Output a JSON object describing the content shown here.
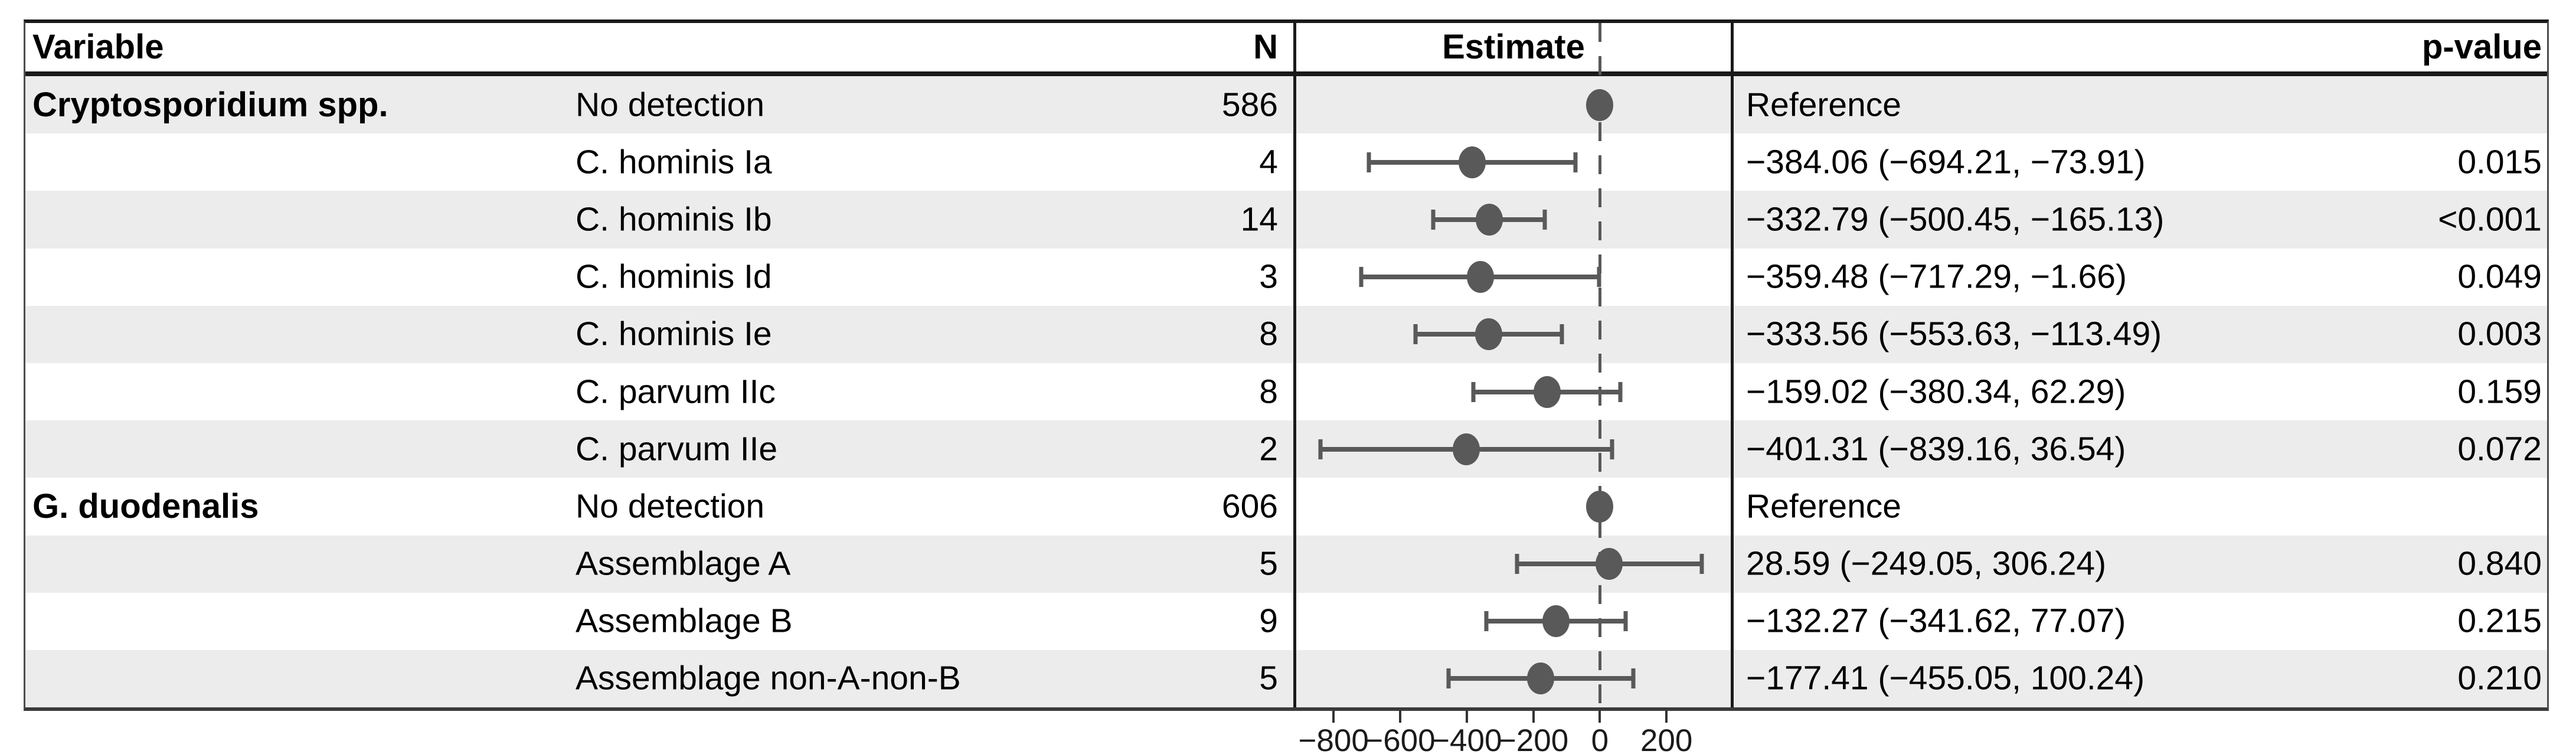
{
  "chart_data": {
    "type": "forest",
    "columns": {
      "variable": "Variable",
      "n": "N",
      "estimate": "Estimate",
      "p_value": "p-value"
    },
    "rows": [
      {
        "group": "Cryptosporidium spp.",
        "label": "No detection",
        "n": "586",
        "estimate": null,
        "ci": null,
        "estimate_text": "Reference",
        "p_value": "",
        "reference": true
      },
      {
        "group": "",
        "label": "C. hominis Ia",
        "n": "4",
        "estimate": -384.06,
        "ci": [
          -694.21,
          -73.91
        ],
        "estimate_text": "−384.06 (−694.21, −73.91)",
        "p_value": "0.015",
        "reference": false
      },
      {
        "group": "",
        "label": "C. hominis Ib",
        "n": "14",
        "estimate": -332.79,
        "ci": [
          -500.45,
          -165.13
        ],
        "estimate_text": "−332.79 (−500.45, −165.13)",
        "p_value": "<0.001",
        "reference": false
      },
      {
        "group": "",
        "label": "C. hominis Id",
        "n": "3",
        "estimate": -359.48,
        "ci": [
          -717.29,
          -1.66
        ],
        "estimate_text": "−359.48 (−717.29, −1.66)",
        "p_value": "0.049",
        "reference": false
      },
      {
        "group": "",
        "label": "C. hominis Ie",
        "n": "8",
        "estimate": -333.56,
        "ci": [
          -553.63,
          -113.49
        ],
        "estimate_text": "−333.56 (−553.63, −113.49)",
        "p_value": "0.003",
        "reference": false
      },
      {
        "group": "",
        "label": "C. parvum IIc",
        "n": "8",
        "estimate": -159.02,
        "ci": [
          -380.34,
          62.29
        ],
        "estimate_text": "−159.02 (−380.34, 62.29)",
        "p_value": "0.159",
        "reference": false
      },
      {
        "group": "",
        "label": "C. parvum IIe",
        "n": "2",
        "estimate": -401.31,
        "ci": [
          -839.16,
          36.54
        ],
        "estimate_text": "−401.31 (−839.16, 36.54)",
        "p_value": "0.072",
        "reference": false
      },
      {
        "group": "G. duodenalis",
        "label": "No detection",
        "n": "606",
        "estimate": null,
        "ci": null,
        "estimate_text": "Reference",
        "p_value": "",
        "reference": true
      },
      {
        "group": "",
        "label": "Assemblage A",
        "n": "5",
        "estimate": 28.59,
        "ci": [
          -249.05,
          306.24
        ],
        "estimate_text": "28.59 (−249.05, 306.24)",
        "p_value": "0.840",
        "reference": false
      },
      {
        "group": "",
        "label": "Assemblage B",
        "n": "9",
        "estimate": -132.27,
        "ci": [
          -341.62,
          77.07
        ],
        "estimate_text": "−132.27 (−341.62, 77.07)",
        "p_value": "0.215",
        "reference": false
      },
      {
        "group": "",
        "label": "Assemblage non-A-non-B",
        "n": "5",
        "estimate": -177.41,
        "ci": [
          -455.05,
          100.24
        ],
        "estimate_text": "−177.41 (−455.05, 100.24)",
        "p_value": "0.210",
        "reference": false
      }
    ],
    "xaxis": {
      "range": [
        -912,
        393
      ],
      "ticks": [
        -800,
        -600,
        -400,
        -200,
        0,
        200
      ],
      "tick_labels": [
        "−800",
        "−600",
        "−400",
        "−200",
        "0",
        "200"
      ],
      "zero_line": 0
    },
    "legend": null,
    "title": ""
  },
  "colors": {
    "marker": "#595959",
    "ci_bar": "#595959",
    "zero_line_dash": "#595959",
    "row_stripe": "#ececec",
    "table_border": "#1a1a1a",
    "axis_tick": "#333333",
    "text": "#000000",
    "background": "#ffffff"
  }
}
